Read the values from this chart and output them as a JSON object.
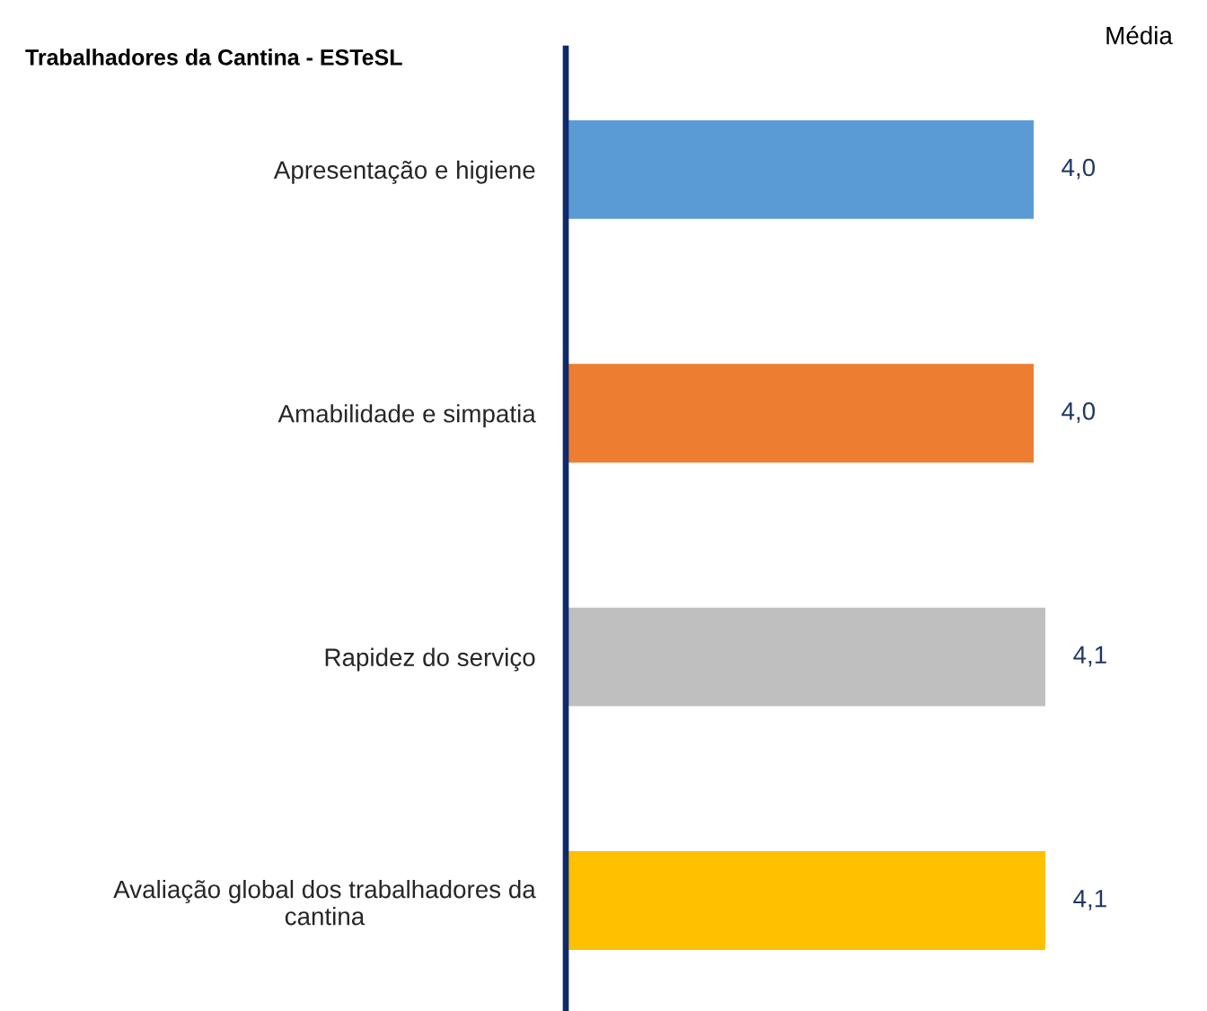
{
  "chart_data": {
    "type": "bar",
    "orientation": "horizontal",
    "title": "Trabalhadores da Cantina - ESTeSL",
    "categories": [
      "Apresentação e higiene",
      "Amabilidade e simpatia",
      "Rapidez do serviço",
      "Avaliação global dos trabalhadores da cantina"
    ],
    "values": [
      4.0,
      4.0,
      4.1,
      4.1
    ],
    "colors": [
      "#5b9bd5",
      "#ed7d31",
      "#bfbfbf",
      "#ffc000"
    ],
    "value_labels": [
      "4,0",
      "4,0",
      "4,1",
      "4,1"
    ],
    "annotations": [
      "Média"
    ],
    "tick_labels": "y"
  }
}
